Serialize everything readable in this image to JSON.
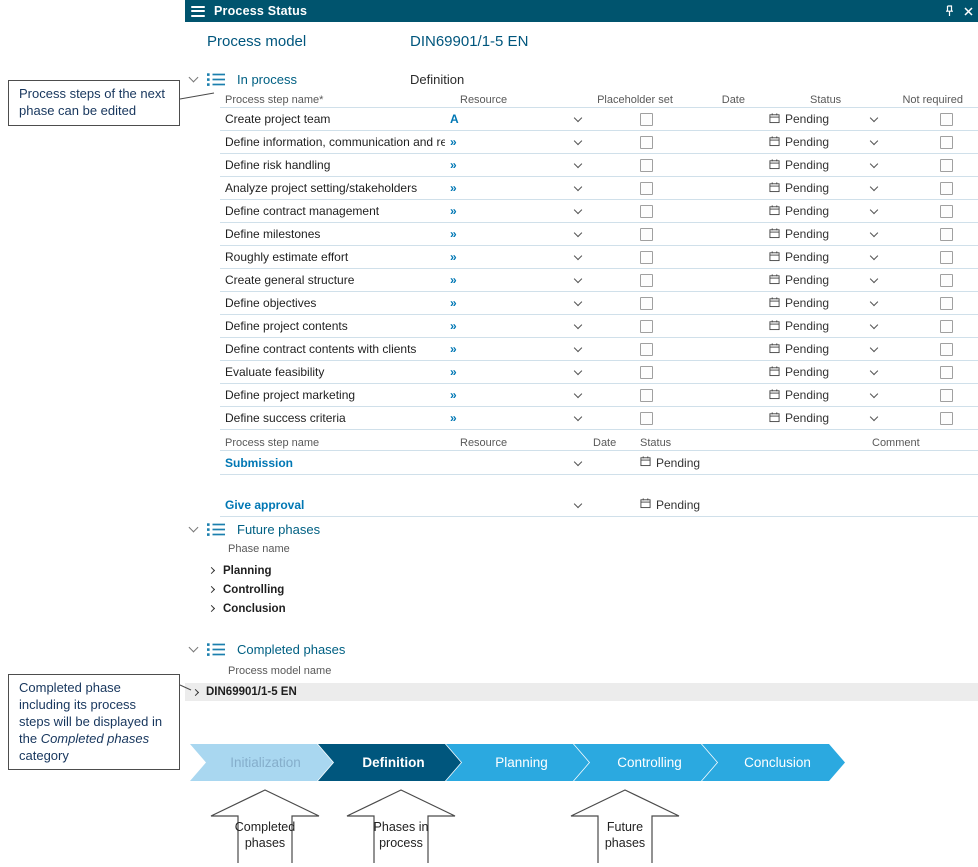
{
  "window": {
    "title": "Process Status"
  },
  "icons": {
    "menu": "hamburger-icon",
    "pin": "pin-icon",
    "close": "close-icon",
    "section": "list-icon",
    "collapse": "chevron-down-icon",
    "expand": "chevron-right-icon",
    "dropdown": "chevron-down-icon",
    "calendar": "calendar-icon"
  },
  "header": {
    "process_model_label": "Process model",
    "process_model_value": "DIN69901/1-5 EN"
  },
  "annotations": {
    "note_top": "Process steps of the next phase can be edited",
    "note_bottom_pre": "Completed phase including its process steps will be displayed in the ",
    "note_bottom_italic": "Completed phases",
    "note_bottom_post": " category"
  },
  "in_process": {
    "label": "In process",
    "phase": "Definition",
    "columns": {
      "name": "Process step name*",
      "resource": "Resource",
      "placeholder": "Placeholder set",
      "date": "Date",
      "status": "Status",
      "not_required": "Not required"
    },
    "rows": [
      {
        "name": "Create project team",
        "resource": "A",
        "status": "Pending"
      },
      {
        "name": "Define information, communication and rep...",
        "resource": "»",
        "status": "Pending"
      },
      {
        "name": "Define risk handling",
        "resource": "»",
        "status": "Pending"
      },
      {
        "name": "Analyze project setting/stakeholders",
        "resource": "»",
        "status": "Pending"
      },
      {
        "name": "Define contract management",
        "resource": "»",
        "status": "Pending"
      },
      {
        "name": "Define milestones",
        "resource": "»",
        "status": "Pending"
      },
      {
        "name": "Roughly estimate effort",
        "resource": "»",
        "status": "Pending"
      },
      {
        "name": "Create general structure",
        "resource": "»",
        "status": "Pending"
      },
      {
        "name": "Define objectives",
        "resource": "»",
        "status": "Pending"
      },
      {
        "name": "Define project contents",
        "resource": "»",
        "status": "Pending"
      },
      {
        "name": "Define contract contents with clients",
        "resource": "»",
        "status": "Pending"
      },
      {
        "name": "Evaluate feasibility",
        "resource": "»",
        "status": "Pending"
      },
      {
        "name": "Define project marketing",
        "resource": "»",
        "status": "Pending"
      },
      {
        "name": "Define success criteria",
        "resource": "»",
        "status": "Pending"
      }
    ]
  },
  "approval": {
    "columns": {
      "name": "Process step name",
      "resource": "Resource",
      "date": "Date",
      "status": "Status",
      "comment": "Comment"
    },
    "rows": [
      {
        "name": "Submission",
        "status": "Pending"
      },
      {
        "name": "Give approval",
        "status": "Pending"
      }
    ]
  },
  "future_phases": {
    "label": "Future phases",
    "column": "Phase name",
    "items": [
      {
        "name": "Planning"
      },
      {
        "name": "Controlling"
      },
      {
        "name": "Conclusion"
      }
    ]
  },
  "completed_phases": {
    "label": "Completed phases",
    "column": "Process model name",
    "items": [
      {
        "name": "DIN69901/1-5 EN"
      }
    ]
  },
  "phase_diagram": {
    "phases": [
      {
        "label": "Initialization",
        "state": "completed"
      },
      {
        "label": "Definition",
        "state": "active"
      },
      {
        "label": "Planning",
        "state": "future"
      },
      {
        "label": "Controlling",
        "state": "future"
      },
      {
        "label": "Conclusion",
        "state": "future"
      }
    ],
    "legend": [
      {
        "label": "Completed\nphases"
      },
      {
        "label": "Phases in\nprocess"
      },
      {
        "label": "Future\nphases"
      }
    ]
  },
  "colors": {
    "titlebar_bg": "#00546E",
    "section_text": "#006083",
    "link_blue": "#0077B4",
    "row_separator": "#D0E0EA",
    "phase_completed_bg": "#A9D7F0",
    "phase_completed_text": "#85AECB",
    "phase_active_bg": "#00567D",
    "phase_future_bg": "#2BA9E0",
    "completed_row_bg": "#ECECEC"
  }
}
